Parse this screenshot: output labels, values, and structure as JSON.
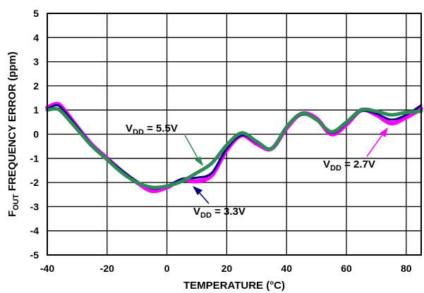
{
  "chart_data": {
    "type": "line",
    "xlabel": "TEMPERATURE (°C)",
    "ylabel": {
      "pre": "F",
      "sub": "OUT",
      "post": " FREQUENCY ERROR (ppm)"
    },
    "xlim": [
      -40,
      85
    ],
    "ylim": [
      -5,
      5
    ],
    "x_ticks": [
      "-40",
      "-20",
      "0",
      "20",
      "40",
      "60",
      "80"
    ],
    "y_ticks": [
      "-5",
      "-4",
      "-3",
      "-2",
      "-1",
      "0",
      "1",
      "2",
      "3",
      "4",
      "5"
    ],
    "grid": true,
    "series": [
      {
        "name": "VDD = 2.7V",
        "color": "#ff00ff",
        "x": [
          -40,
          -37,
          -35,
          -30,
          -25,
          -20,
          -15,
          -10,
          -5,
          0,
          5,
          10,
          15,
          20,
          25,
          30,
          35,
          40,
          45,
          50,
          55,
          60,
          65,
          70,
          75,
          80,
          85
        ],
        "y": [
          1.1,
          1.25,
          1.1,
          0.3,
          -0.45,
          -1.0,
          -1.55,
          -2.0,
          -2.35,
          -2.2,
          -1.9,
          -1.95,
          -1.7,
          -0.65,
          -0.05,
          -0.4,
          -0.6,
          0.25,
          0.85,
          0.65,
          0.0,
          0.4,
          1.0,
          0.8,
          0.45,
          0.7,
          1.05
        ]
      },
      {
        "name": "VDD = 3.3V",
        "color": "#000080",
        "x": [
          -40,
          -37,
          -35,
          -30,
          -25,
          -20,
          -15,
          -10,
          -5,
          0,
          5,
          10,
          15,
          20,
          25,
          30,
          35,
          40,
          45,
          50,
          55,
          60,
          65,
          70,
          75,
          80,
          85
        ],
        "y": [
          1.05,
          1.2,
          1.05,
          0.3,
          -0.45,
          -1.0,
          -1.5,
          -1.95,
          -2.25,
          -2.15,
          -1.85,
          -1.8,
          -1.6,
          -0.6,
          -0.05,
          -0.35,
          -0.6,
          0.3,
          0.8,
          0.6,
          0.05,
          0.45,
          0.95,
          0.85,
          0.6,
          0.8,
          1.2
        ]
      },
      {
        "name": "VDD = 5.5V",
        "color": "#2e8b57",
        "x": [
          -40,
          -37,
          -35,
          -30,
          -25,
          -20,
          -15,
          -10,
          -5,
          0,
          5,
          10,
          15,
          20,
          25,
          30,
          35,
          40,
          45,
          50,
          55,
          60,
          65,
          70,
          75,
          80,
          85
        ],
        "y": [
          1.0,
          1.05,
          0.9,
          0.2,
          -0.5,
          -1.05,
          -1.6,
          -2.0,
          -2.2,
          -2.15,
          -1.95,
          -1.6,
          -1.2,
          -0.45,
          0.05,
          -0.3,
          -0.6,
          0.3,
          0.85,
          0.6,
          0.1,
          0.5,
          1.0,
          0.95,
          0.8,
          0.9,
          0.95
        ]
      }
    ],
    "annotations": [
      {
        "series": "VDD = 5.5V",
        "pre": "V",
        "sub": "DD",
        "post": " = 5.5V"
      },
      {
        "series": "VDD = 3.3V",
        "pre": "V",
        "sub": "DD",
        "post": " = 3.3V"
      },
      {
        "series": "VDD = 2.7V",
        "pre": "V",
        "sub": "DD",
        "post": " = 2.7V"
      }
    ]
  }
}
